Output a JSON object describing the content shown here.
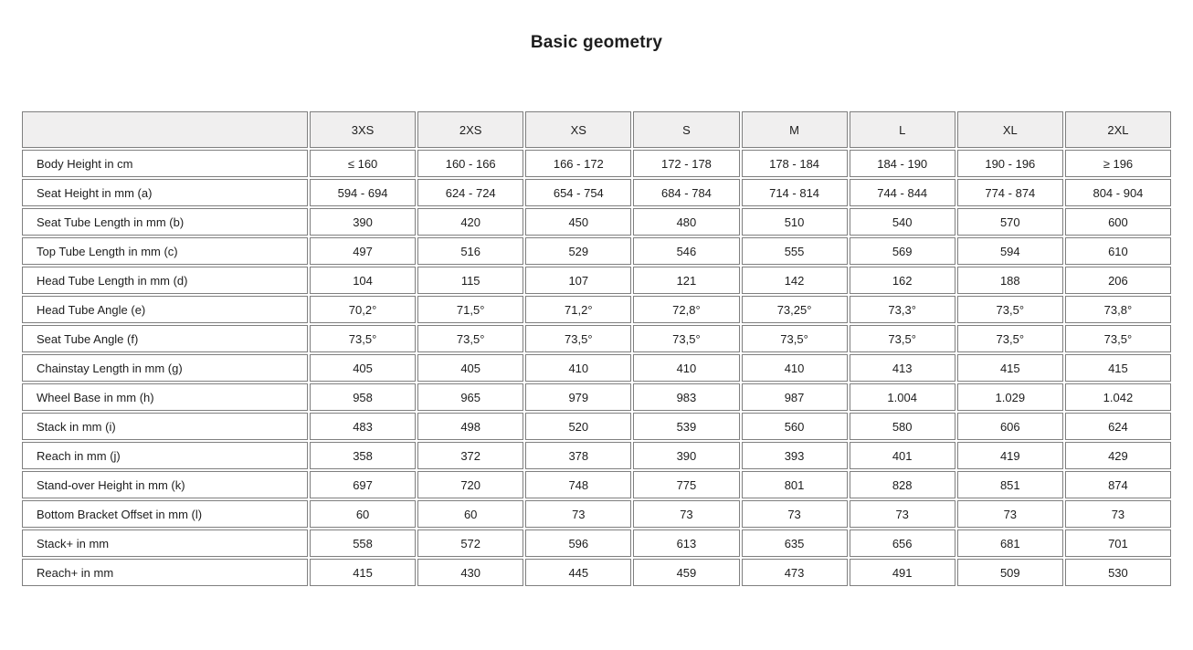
{
  "page_title": "Basic geometry",
  "colors": {
    "background": "#ffffff",
    "header_bg": "#f0efef",
    "border": "#7f7f7f",
    "text": "#1d1d1d"
  },
  "chart_data": {
    "type": "table",
    "title": "Basic geometry",
    "columns": [
      "",
      "3XS",
      "2XS",
      "XS",
      "S",
      "M",
      "L",
      "XL",
      "2XL"
    ],
    "rows": [
      {
        "label": "Body Height in cm",
        "values": [
          "≤ 160",
          "160 - 166",
          "166 - 172",
          "172 - 178",
          "178 - 184",
          "184 - 190",
          "190 - 196",
          "≥ 196"
        ]
      },
      {
        "label": "Seat Height in mm (a)",
        "values": [
          "594 - 694",
          "624 - 724",
          "654 - 754",
          "684 - 784",
          "714 - 814",
          "744 - 844",
          "774 - 874",
          "804 - 904"
        ]
      },
      {
        "label": "Seat Tube Length in mm (b)",
        "values": [
          "390",
          "420",
          "450",
          "480",
          "510",
          "540",
          "570",
          "600"
        ]
      },
      {
        "label": "Top Tube Length in mm (c)",
        "values": [
          "497",
          "516",
          "529",
          "546",
          "555",
          "569",
          "594",
          "610"
        ]
      },
      {
        "label": "Head Tube Length in mm (d)",
        "values": [
          "104",
          "115",
          "107",
          "121",
          "142",
          "162",
          "188",
          "206"
        ]
      },
      {
        "label": "Head Tube Angle (e)",
        "values": [
          "70,2°",
          "71,5°",
          "71,2°",
          "72,8°",
          "73,25°",
          "73,3°",
          "73,5°",
          "73,8°"
        ]
      },
      {
        "label": "Seat Tube Angle (f)",
        "values": [
          "73,5°",
          "73,5°",
          "73,5°",
          "73,5°",
          "73,5°",
          "73,5°",
          "73,5°",
          "73,5°"
        ]
      },
      {
        "label": "Chainstay Length in mm (g)",
        "values": [
          "405",
          "405",
          "410",
          "410",
          "410",
          "413",
          "415",
          "415"
        ]
      },
      {
        "label": "Wheel Base in mm (h)",
        "values": [
          "958",
          "965",
          "979",
          "983",
          "987",
          "1.004",
          "1.029",
          "1.042"
        ]
      },
      {
        "label": "Stack in mm (i)",
        "values": [
          "483",
          "498",
          "520",
          "539",
          "560",
          "580",
          "606",
          "624"
        ]
      },
      {
        "label": "Reach in mm (j)",
        "values": [
          "358",
          "372",
          "378",
          "390",
          "393",
          "401",
          "419",
          "429"
        ]
      },
      {
        "label": "Stand-over Height in mm (k)",
        "values": [
          "697",
          "720",
          "748",
          "775",
          "801",
          "828",
          "851",
          "874"
        ]
      },
      {
        "label": "Bottom Bracket Offset in mm (l)",
        "values": [
          "60",
          "60",
          "73",
          "73",
          "73",
          "73",
          "73",
          "73"
        ]
      },
      {
        "label": "Stack+ in mm",
        "values": [
          "558",
          "572",
          "596",
          "613",
          "635",
          "656",
          "681",
          "701"
        ]
      },
      {
        "label": "Reach+ in mm",
        "values": [
          "415",
          "430",
          "445",
          "459",
          "473",
          "491",
          "509",
          "530"
        ]
      }
    ]
  }
}
